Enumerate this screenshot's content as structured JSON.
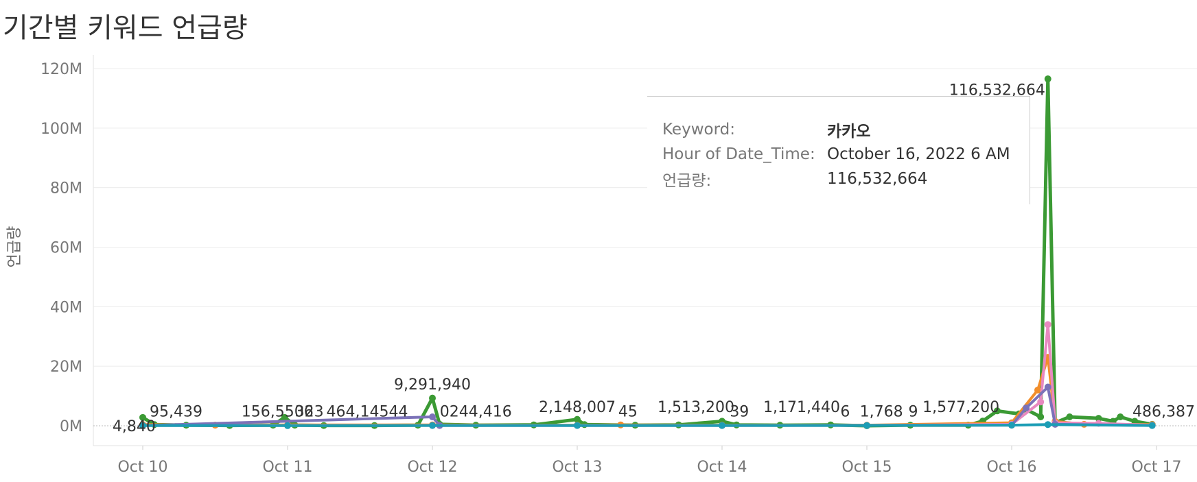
{
  "title": "기간별 키워드 언급량",
  "colors": {
    "grid": "#ececec",
    "axis": "#e0e0e0",
    "green": "#3b9a34",
    "orange": "#f28e2b",
    "pink": "#e889c0",
    "purple": "#7b72b8",
    "teal": "#1c9db5"
  },
  "tooltip": {
    "keyword_label": "Keyword:",
    "keyword_value": "카카오",
    "time_label": "Hour of Date_Time:",
    "time_value": "October 16, 2022 6 AM",
    "count_label": "언급량:",
    "count_value": "116,532,664"
  },
  "chart_data": {
    "type": "line",
    "title": "기간별 키워드 언급량",
    "xlabel": "",
    "ylabel": "언급량",
    "ylim": [
      0,
      120000000
    ],
    "yticks": [
      "0M",
      "20M",
      "40M",
      "60M",
      "80M",
      "100M",
      "120M"
    ],
    "x_unit": "day (Oct 10 = 0)",
    "xticks": [
      "Oct 10",
      "Oct 11",
      "Oct 12",
      "Oct 13",
      "Oct 14",
      "Oct 15",
      "Oct 16",
      "Oct 17"
    ],
    "grid": true,
    "series": [
      {
        "name": "카카오",
        "color": "#3b9a34",
        "points": [
          [
            0.0,
            2800000
          ],
          [
            0.08,
            400000
          ],
          [
            0.3,
            200000
          ],
          [
            0.6,
            100000
          ],
          [
            0.9,
            200000
          ],
          [
            0.98,
            2800000
          ],
          [
            1.05,
            200000
          ],
          [
            1.25,
            100000
          ],
          [
            1.6,
            100000
          ],
          [
            1.9,
            200000
          ],
          [
            2.0,
            9291940
          ],
          [
            2.05,
            500000
          ],
          [
            2.3,
            200000
          ],
          [
            2.7,
            300000
          ],
          [
            3.0,
            2148007
          ],
          [
            3.05,
            400000
          ],
          [
            3.4,
            200000
          ],
          [
            3.7,
            300000
          ],
          [
            4.0,
            1513200
          ],
          [
            4.1,
            300000
          ],
          [
            4.4,
            200000
          ],
          [
            4.75,
            300000
          ],
          [
            5.0,
            1768
          ],
          [
            5.3,
            200000
          ],
          [
            5.7,
            200000
          ],
          [
            5.8,
            1577200
          ],
          [
            5.9,
            5000000
          ],
          [
            6.05,
            4000000
          ],
          [
            6.1,
            5500000
          ],
          [
            6.2,
            3000000
          ],
          [
            6.25,
            116532664
          ],
          [
            6.3,
            1000000
          ],
          [
            6.4,
            3000000
          ],
          [
            6.6,
            2500000
          ],
          [
            6.7,
            1500000
          ],
          [
            6.75,
            3000000
          ],
          [
            6.85,
            1500000
          ],
          [
            6.97,
            486387
          ]
        ]
      },
      {
        "name": "",
        "color": "#f28e2b",
        "points": [
          [
            0.0,
            400000
          ],
          [
            0.5,
            200000
          ],
          [
            1.0,
            300000
          ],
          [
            2.0,
            300000
          ],
          [
            3.0,
            200000
          ],
          [
            3.3,
            300000
          ],
          [
            4.0,
            200000
          ],
          [
            5.0,
            200000
          ],
          [
            6.0,
            1000000
          ],
          [
            6.18,
            12000000
          ],
          [
            6.25,
            23000000
          ],
          [
            6.3,
            1500000
          ],
          [
            6.5,
            500000
          ],
          [
            6.97,
            400000
          ]
        ]
      },
      {
        "name": "",
        "color": "#e889c0",
        "points": [
          [
            0.0,
            100000
          ],
          [
            1.0,
            100000
          ],
          [
            2.0,
            100000
          ],
          [
            3.0,
            100000
          ],
          [
            4.0,
            100000
          ],
          [
            5.0,
            100000
          ],
          [
            6.0,
            500000
          ],
          [
            6.2,
            8000000
          ],
          [
            6.25,
            34000000
          ],
          [
            6.3,
            1000000
          ],
          [
            6.6,
            800000
          ],
          [
            6.97,
            200000
          ]
        ]
      },
      {
        "name": "",
        "color": "#7b72b8",
        "points": [
          [
            0.0,
            50000
          ],
          [
            2.0,
            3000000
          ],
          [
            2.05,
            100000
          ],
          [
            4.0,
            100000
          ],
          [
            6.0,
            200000
          ],
          [
            6.1,
            6000000
          ],
          [
            6.25,
            13000000
          ],
          [
            6.3,
            500000
          ],
          [
            6.97,
            100000
          ]
        ]
      },
      {
        "name": "",
        "color": "#1c9db5",
        "points": [
          [
            0.0,
            50000
          ],
          [
            1.0,
            50000
          ],
          [
            2.0,
            100000
          ],
          [
            3.0,
            100000
          ],
          [
            4.0,
            100000
          ],
          [
            5.0,
            100000
          ],
          [
            6.0,
            200000
          ],
          [
            6.25,
            400000
          ],
          [
            6.97,
            100000
          ]
        ]
      }
    ],
    "annotations": [
      {
        "text": "4,840",
        "x": -0.06,
        "y": 0
      },
      {
        "text": "95,439",
        "x": 0.23,
        "y": 5000000
      },
      {
        "text": "156,5506",
        "x": 0.93,
        "y": 5000000
      },
      {
        "text": "323",
        "x": 1.15,
        "y": 5000000
      },
      {
        "text": "464,14544",
        "x": 1.55,
        "y": 5000000
      },
      {
        "text": "9,291,940",
        "x": 2.0,
        "y": 14000000
      },
      {
        "text": "0244,416",
        "x": 2.3,
        "y": 5000000
      },
      {
        "text": "2,148,007",
        "x": 3.0,
        "y": 6500000
      },
      {
        "text": "45",
        "x": 3.35,
        "y": 5000000
      },
      {
        "text": "1,513,200",
        "x": 3.82,
        "y": 6500000
      },
      {
        "text": "39",
        "x": 4.12,
        "y": 5000000
      },
      {
        "text": "1,171,440",
        "x": 4.55,
        "y": 6500000
      },
      {
        "text": "6",
        "x": 4.85,
        "y": 5000000
      },
      {
        "text": "1,768",
        "x": 5.1,
        "y": 5000000
      },
      {
        "text": "9",
        "x": 5.32,
        "y": 5000000
      },
      {
        "text": "1,577,200",
        "x": 5.65,
        "y": 6500000
      },
      {
        "text": "116,532,664",
        "x": 5.9,
        "y": 113000000
      },
      {
        "text": "486,387",
        "x": 7.05,
        "y": 5000000
      }
    ]
  }
}
